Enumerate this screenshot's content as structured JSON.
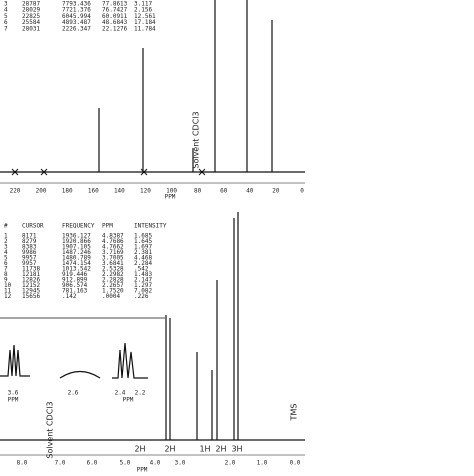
{
  "carbon_spectrum": {
    "table": {
      "rows": [
        [
          "3",
          "28787",
          "7793.436",
          "77.8613",
          "3.117"
        ],
        [
          "4",
          "28029",
          "7721.376",
          "76.7427",
          "2.156"
        ],
        [
          "5",
          "22825",
          "6045.994",
          "60.0911",
          "12.561"
        ],
        [
          "6",
          "25584",
          "4893.487",
          "48.6843",
          "17.184"
        ],
        [
          "7",
          "28031",
          "2226.347",
          "22.1276",
          "11.784"
        ]
      ]
    },
    "axis_labels": [
      "220",
      "200",
      "180",
      "160",
      "140",
      "120",
      "100",
      "80",
      "60",
      "40",
      "20",
      "0"
    ],
    "axis_unit": "PPM",
    "annotation": "Solvent CDCl3"
  },
  "proton_spectrum": {
    "table": {
      "header": [
        "#",
        "CURSOR",
        "FREQUENCY",
        "PPM",
        "INTENSITY"
      ],
      "rows": [
        [
          "1",
          "8171",
          "1936.127",
          "4.8387",
          "1.685"
        ],
        [
          "2",
          "8279",
          "1920.866",
          "4.7686",
          "1.645"
        ],
        [
          "3",
          "8383",
          "1907.105",
          "4.7662",
          "1.697"
        ],
        [
          "4",
          "9986",
          "1487.246",
          "3.7169",
          "2.381"
        ],
        [
          "5",
          "9957",
          "1480.789",
          "3.7005",
          "4.468"
        ],
        [
          "6",
          "9957",
          "1474.154",
          "3.6841",
          "2.284"
        ],
        [
          "7",
          "11738",
          "1013.542",
          "2.5328",
          ".542"
        ],
        [
          "8",
          "12181",
          "919.446",
          "2.2982",
          "1.483"
        ],
        [
          "9",
          "12826",
          "912.899",
          "2.2828",
          "2.147"
        ],
        [
          "10",
          "12152",
          "906.574",
          "2.2657",
          "1.297"
        ],
        [
          "11",
          "12945",
          "781.163",
          "1.7520",
          "7.082"
        ],
        [
          "12",
          "15656",
          ".142",
          ".0004",
          ".226"
        ]
      ]
    },
    "inset_labels": [
      "3.6",
      "2.6",
      "2.4",
      "2.2"
    ],
    "inset_unit": "PPM",
    "axis_labels": [
      "8.0",
      "7.0",
      "6.0",
      "5.0",
      "4.0",
      "3.0",
      "2.0",
      "1.0",
      "0.0"
    ],
    "axis_unit": "PPM",
    "integrations": [
      "2H",
      "2H",
      "1H",
      "2H",
      "3H"
    ],
    "annotations": {
      "solvent": "Solvent CDCl3",
      "reference": "TMS"
    }
  }
}
